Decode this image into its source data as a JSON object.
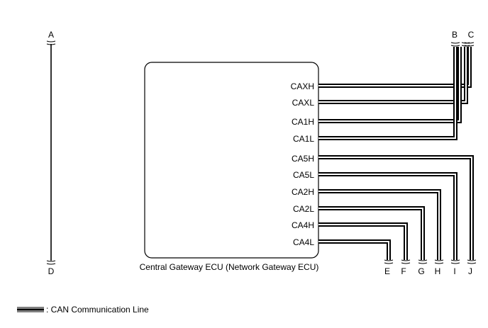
{
  "ecu": {
    "label": "Central Gateway ECU (Network Gateway ECU)",
    "pins": [
      "CAXH",
      "CAXL",
      "CA1H",
      "CA1L",
      "CA5H",
      "CA5L",
      "CA2H",
      "CA2L",
      "CA4H",
      "CA4L"
    ]
  },
  "connectors": {
    "left_top": "A",
    "left_bottom": "D",
    "top": [
      "B",
      "C"
    ],
    "bottom": [
      "E",
      "F",
      "G",
      "H",
      "I",
      "J"
    ]
  },
  "legend": {
    "label": ": CAN Communication Line"
  }
}
